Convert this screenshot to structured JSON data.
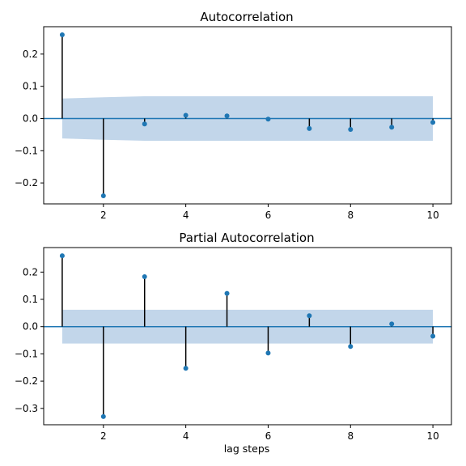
{
  "colors": {
    "marker": "#1f77b4",
    "baseline": "#1f77b4",
    "stem": "#000000",
    "band": "#c2d6ea",
    "axes": "#000000",
    "background": "#ffffff"
  },
  "chart_data": [
    {
      "type": "stem",
      "title": "Autocorrelation",
      "xlabel": "",
      "ylabel": "",
      "x": [
        1,
        2,
        3,
        4,
        5,
        6,
        7,
        8,
        9,
        10
      ],
      "values": [
        0.26,
        -0.24,
        -0.017,
        0.01,
        0.008,
        -0.002,
        -0.031,
        -0.034,
        -0.027,
        -0.012
      ],
      "confidence_band": {
        "upper": [
          0.062,
          0.066,
          0.069,
          0.069,
          0.069,
          0.069,
          0.069,
          0.069,
          0.069,
          0.069
        ],
        "lower": [
          -0.062,
          -0.066,
          -0.069,
          -0.069,
          -0.069,
          -0.069,
          -0.069,
          -0.069,
          -0.069,
          -0.069
        ]
      },
      "xlim": [
        0.55,
        10.45
      ],
      "ylim": [
        -0.265,
        0.285
      ],
      "xticks": [
        2,
        4,
        6,
        8,
        10
      ],
      "xtick_labels": [
        "2",
        "4",
        "6",
        "8",
        "10"
      ],
      "yticks": [
        -0.2,
        -0.1,
        0.0,
        0.1,
        0.2
      ],
      "ytick_labels": [
        "−0.2",
        "−0.1",
        "0.0",
        "0.1",
        "0.2"
      ],
      "grid": false,
      "legend": "none"
    },
    {
      "type": "stem",
      "title": "Partial Autocorrelation",
      "xlabel": "lag steps",
      "ylabel": "",
      "x": [
        1,
        2,
        3,
        4,
        5,
        6,
        7,
        8,
        9,
        10
      ],
      "values": [
        0.26,
        -0.33,
        0.183,
        -0.153,
        0.122,
        -0.097,
        0.04,
        -0.073,
        0.01,
        -0.035
      ],
      "confidence_band": {
        "upper": [
          0.062,
          0.062,
          0.062,
          0.062,
          0.062,
          0.062,
          0.062,
          0.062,
          0.062,
          0.062
        ],
        "lower": [
          -0.062,
          -0.062,
          -0.062,
          -0.062,
          -0.062,
          -0.062,
          -0.062,
          -0.062,
          -0.062,
          -0.062
        ]
      },
      "xlim": [
        0.55,
        10.45
      ],
      "ylim": [
        -0.36,
        0.29
      ],
      "xticks": [
        2,
        4,
        6,
        8,
        10
      ],
      "xtick_labels": [
        "2",
        "4",
        "6",
        "8",
        "10"
      ],
      "yticks": [
        -0.3,
        -0.2,
        -0.1,
        0.0,
        0.1,
        0.2
      ],
      "ytick_labels": [
        "−0.3",
        "−0.2",
        "−0.1",
        "0.0",
        "0.1",
        "0.2"
      ],
      "grid": false,
      "legend": "none"
    }
  ]
}
